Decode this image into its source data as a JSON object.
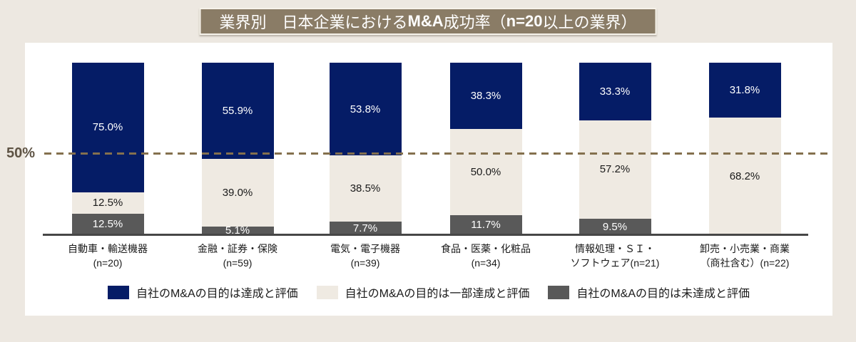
{
  "page": {
    "background": "#EDE8E1",
    "panel_background": "#FFFFFF"
  },
  "header": {
    "title_full": "業界別　日本企業におけるM&A成功率（n=20以上の業界）",
    "title_segments": [
      {
        "text": "業界別　日本企業における",
        "bold": false
      },
      {
        "text": "M&A",
        "bold": true
      },
      {
        "text": "成功率（",
        "bold": false
      },
      {
        "text": "n=20",
        "bold": true
      },
      {
        "text": "以上の業界）",
        "bold": false
      }
    ],
    "background": "#8A7C66",
    "text_color": "#FFFFFF"
  },
  "chart_data": {
    "type": "bar",
    "stacked": true,
    "orientation": "vertical",
    "ylim": [
      0,
      100
    ],
    "unit": "%",
    "grid": false,
    "legend_position": "bottom",
    "categories": [
      {
        "line1": "自動車・輸送機器",
        "line2": "(n=20)"
      },
      {
        "line1": "金融・証券・保険",
        "line2": "(n=59)"
      },
      {
        "line1": "電気・電子機器",
        "line2": "(n=39)"
      },
      {
        "line1": "食品・医薬・化粧品",
        "line2": "(n=34)"
      },
      {
        "line1": "情報処理・ＳＩ・",
        "line2": "ソフトウェア(n=21)"
      },
      {
        "line1": "卸売・小売業・商業",
        "line2": "（商社含む）(n=22)"
      }
    ],
    "series": [
      {
        "name": "自社のM&Aの目的は達成と評価",
        "color": "#051C66",
        "label_color": "#FFFFFF",
        "values": [
          75.0,
          55.9,
          53.8,
          38.3,
          33.3,
          31.8
        ]
      },
      {
        "name": "自社のM&Aの目的は一部達成と評価",
        "color": "#EFEAE2",
        "label_color": "#1A1A1A",
        "values": [
          12.5,
          39.0,
          38.5,
          50.0,
          57.2,
          68.2
        ]
      },
      {
        "name": "自社のM&Aの目的は未達成と評価",
        "color": "#595959",
        "label_color": "#FFFFFF",
        "values": [
          12.5,
          5.1,
          7.7,
          11.7,
          9.5,
          0
        ]
      }
    ],
    "reference_line": {
      "value": 50,
      "label": "50%",
      "color": "#84704E",
      "label_color": "#5E5344",
      "style": "dashed"
    },
    "axis_line_color": "#474747"
  }
}
